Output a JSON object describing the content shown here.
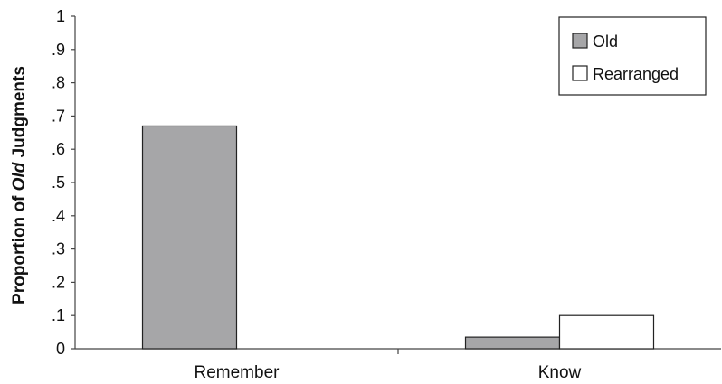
{
  "chart_data": {
    "type": "bar",
    "title": "",
    "xlabel": "",
    "ylabel_parts": [
      "Proportion of ",
      "Old",
      " Judgments"
    ],
    "categories": [
      "Remember",
      "Know"
    ],
    "series": [
      {
        "name": "Old",
        "values": [
          0.67,
          0.035
        ],
        "color": "#a6a6a8"
      },
      {
        "name": "Rearranged",
        "values": [
          0.0,
          0.1
        ],
        "color": "#ffffff"
      }
    ],
    "ylim": [
      0,
      1
    ],
    "yticks": [
      0,
      0.1,
      0.2,
      0.3,
      0.4,
      0.5,
      0.6,
      0.7,
      0.8,
      0.9,
      1
    ],
    "ytick_labels": [
      "0",
      ".1",
      ".2",
      ".3",
      ".4",
      ".5",
      ".6",
      ".7",
      ".8",
      ".9",
      "1"
    ],
    "grid": false,
    "legend_position": "top-right"
  }
}
